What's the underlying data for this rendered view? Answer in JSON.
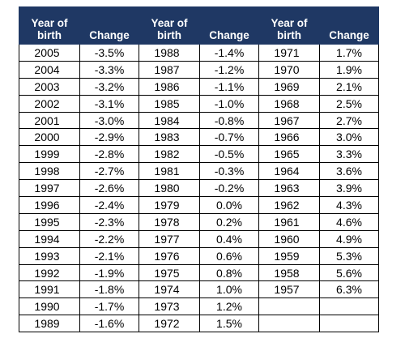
{
  "headers": {
    "year": "Year of birth",
    "change": "Change"
  },
  "rows": [
    [
      "2005",
      "-3.5%",
      "1988",
      "-1.4%",
      "1971",
      "1.7%"
    ],
    [
      "2004",
      "-3.3%",
      "1987",
      "-1.2%",
      "1970",
      "1.9%"
    ],
    [
      "2003",
      "-3.2%",
      "1986",
      "-1.1%",
      "1969",
      "2.1%"
    ],
    [
      "2002",
      "-3.1%",
      "1985",
      "-1.0%",
      "1968",
      "2.5%"
    ],
    [
      "2001",
      "-3.0%",
      "1984",
      "-0.8%",
      "1967",
      "2.7%"
    ],
    [
      "2000",
      "-2.9%",
      "1983",
      "-0.7%",
      "1966",
      "3.0%"
    ],
    [
      "1999",
      "-2.8%",
      "1982",
      "-0.5%",
      "1965",
      "3.3%"
    ],
    [
      "1998",
      "-2.7%",
      "1981",
      "-0.3%",
      "1964",
      "3.6%"
    ],
    [
      "1997",
      "-2.6%",
      "1980",
      "-0.2%",
      "1963",
      "3.9%"
    ],
    [
      "1996",
      "-2.4%",
      "1979",
      "0.0%",
      "1962",
      "4.3%"
    ],
    [
      "1995",
      "-2.3%",
      "1978",
      "0.2%",
      "1961",
      "4.6%"
    ],
    [
      "1994",
      "-2.2%",
      "1977",
      "0.4%",
      "1960",
      "4.9%"
    ],
    [
      "1993",
      "-2.1%",
      "1976",
      "0.6%",
      "1959",
      "5.3%"
    ],
    [
      "1992",
      "-1.9%",
      "1975",
      "0.8%",
      "1958",
      "5.6%"
    ],
    [
      "1991",
      "-1.8%",
      "1974",
      "1.0%",
      "1957",
      "6.3%"
    ],
    [
      "1990",
      "-1.7%",
      "1973",
      "1.2%",
      "",
      ""
    ],
    [
      "1989",
      "-1.6%",
      "1972",
      "1.5%",
      "",
      ""
    ]
  ],
  "colors": {
    "header_bg": "#1f3864",
    "header_text": "#ffffff",
    "border": "#000000"
  }
}
